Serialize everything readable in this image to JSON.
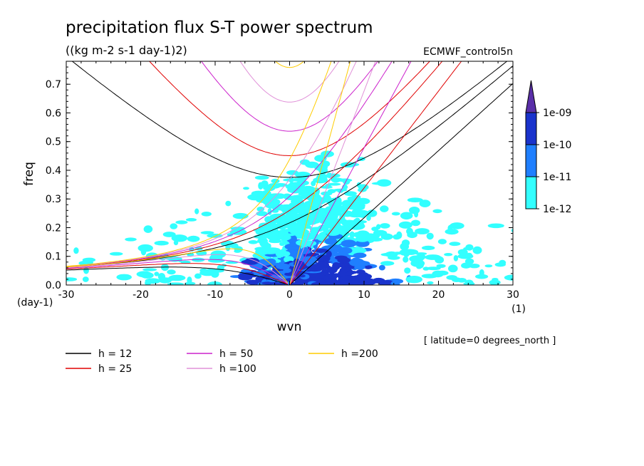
{
  "chart_data": {
    "type": "heatmap",
    "title": "precipitation flux S-T power spectrum",
    "subtitle": "((kg m-2 s-1 day-1)2)",
    "model_label": "ECMWF_control5n",
    "footnote": "[ latitude=0 degrees_north ]",
    "xlabel": "wvn",
    "ylabel": "freq",
    "x_unit": "(1)",
    "y_unit": "(day-1)",
    "xlim": [
      -30,
      30
    ],
    "ylim": [
      0,
      0.78
    ],
    "x_ticks": [
      -30,
      -20,
      -10,
      0,
      10,
      20,
      30
    ],
    "x_tick_labels": [
      "-30",
      "-20",
      "-10",
      "0",
      "10",
      "20",
      "30"
    ],
    "y_ticks": [
      0.0,
      0.1,
      0.2,
      0.3,
      0.4,
      0.5,
      0.6,
      0.7
    ],
    "y_tick_labels": [
      "0.0",
      "0.1",
      "0.2",
      "0.3",
      "0.4",
      "0.5",
      "0.6",
      "0.7"
    ],
    "colorbar": {
      "levels": [
        "1e-12",
        "1e-11",
        "1e-10",
        "1e-09"
      ],
      "colors": [
        "#33ffff",
        "#1f7fff",
        "#1a33cc",
        "#5a2fa8"
      ]
    },
    "series": [
      {
        "name": "h = 12",
        "h": 12,
        "color": "#000000"
      },
      {
        "name": "h = 25",
        "h": 25,
        "color": "#e00000"
      },
      {
        "name": "h = 50",
        "h": 50,
        "color": "#cc22cc"
      },
      {
        "name": "h =100",
        "h": 100,
        "color": "#e090d8"
      },
      {
        "name": "h =200",
        "h": 200,
        "color": "#ffcc00"
      }
    ]
  }
}
